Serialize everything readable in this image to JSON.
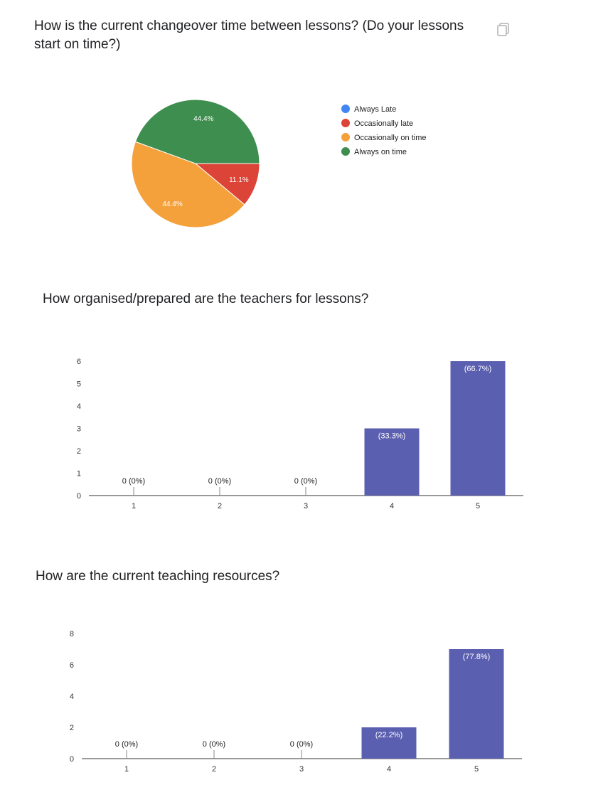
{
  "questions": [
    {
      "title": "How is the current changeover time between lessons? (Do your lessons start on time?)"
    },
    {
      "title": "How organised/prepared are the teachers for lessons?"
    },
    {
      "title": "How are the current teaching resources?"
    }
  ],
  "icons": {
    "copy": "copy-icon"
  },
  "chart_data": [
    {
      "type": "pie",
      "title": "How is the current changeover time between lessons? (Do your lessons start on time?)",
      "legend": [
        "Always Late",
        "Occasionally late",
        "Occasionally on time",
        "Always on time"
      ],
      "legend_position": "right",
      "colors": [
        "#4285f4",
        "#db4437",
        "#f4a13c",
        "#3e8f4f"
      ],
      "values": [
        0,
        11.1,
        44.4,
        44.4
      ],
      "labels": [
        "",
        "11.1%",
        "44.4%",
        "44.4%"
      ]
    },
    {
      "type": "bar",
      "title": "How organised/prepared are the teachers for lessons?",
      "categories": [
        "1",
        "2",
        "3",
        "4",
        "5"
      ],
      "values": [
        0,
        0,
        0,
        3,
        6
      ],
      "value_labels": [
        "0 (0%)",
        "0 (0%)",
        "0 (0%)",
        "(33.3%)",
        "(66.7%)"
      ],
      "ylim": [
        0,
        6
      ],
      "yticks": [
        "0",
        "1",
        "2",
        "3",
        "4",
        "5",
        "6"
      ],
      "color": "#5b5fb0",
      "grid": false
    },
    {
      "type": "bar",
      "title": "How are the current teaching resources?",
      "categories": [
        "1",
        "2",
        "3",
        "4",
        "5"
      ],
      "values": [
        0,
        0,
        0,
        2,
        7
      ],
      "value_labels": [
        "0 (0%)",
        "0 (0%)",
        "0 (0%)",
        "(22.2%)",
        "(77.8%)"
      ],
      "ylim": [
        0,
        8
      ],
      "yticks": [
        "0",
        "2",
        "4",
        "6",
        "8"
      ],
      "color": "#5b5fb0",
      "grid": false
    }
  ]
}
